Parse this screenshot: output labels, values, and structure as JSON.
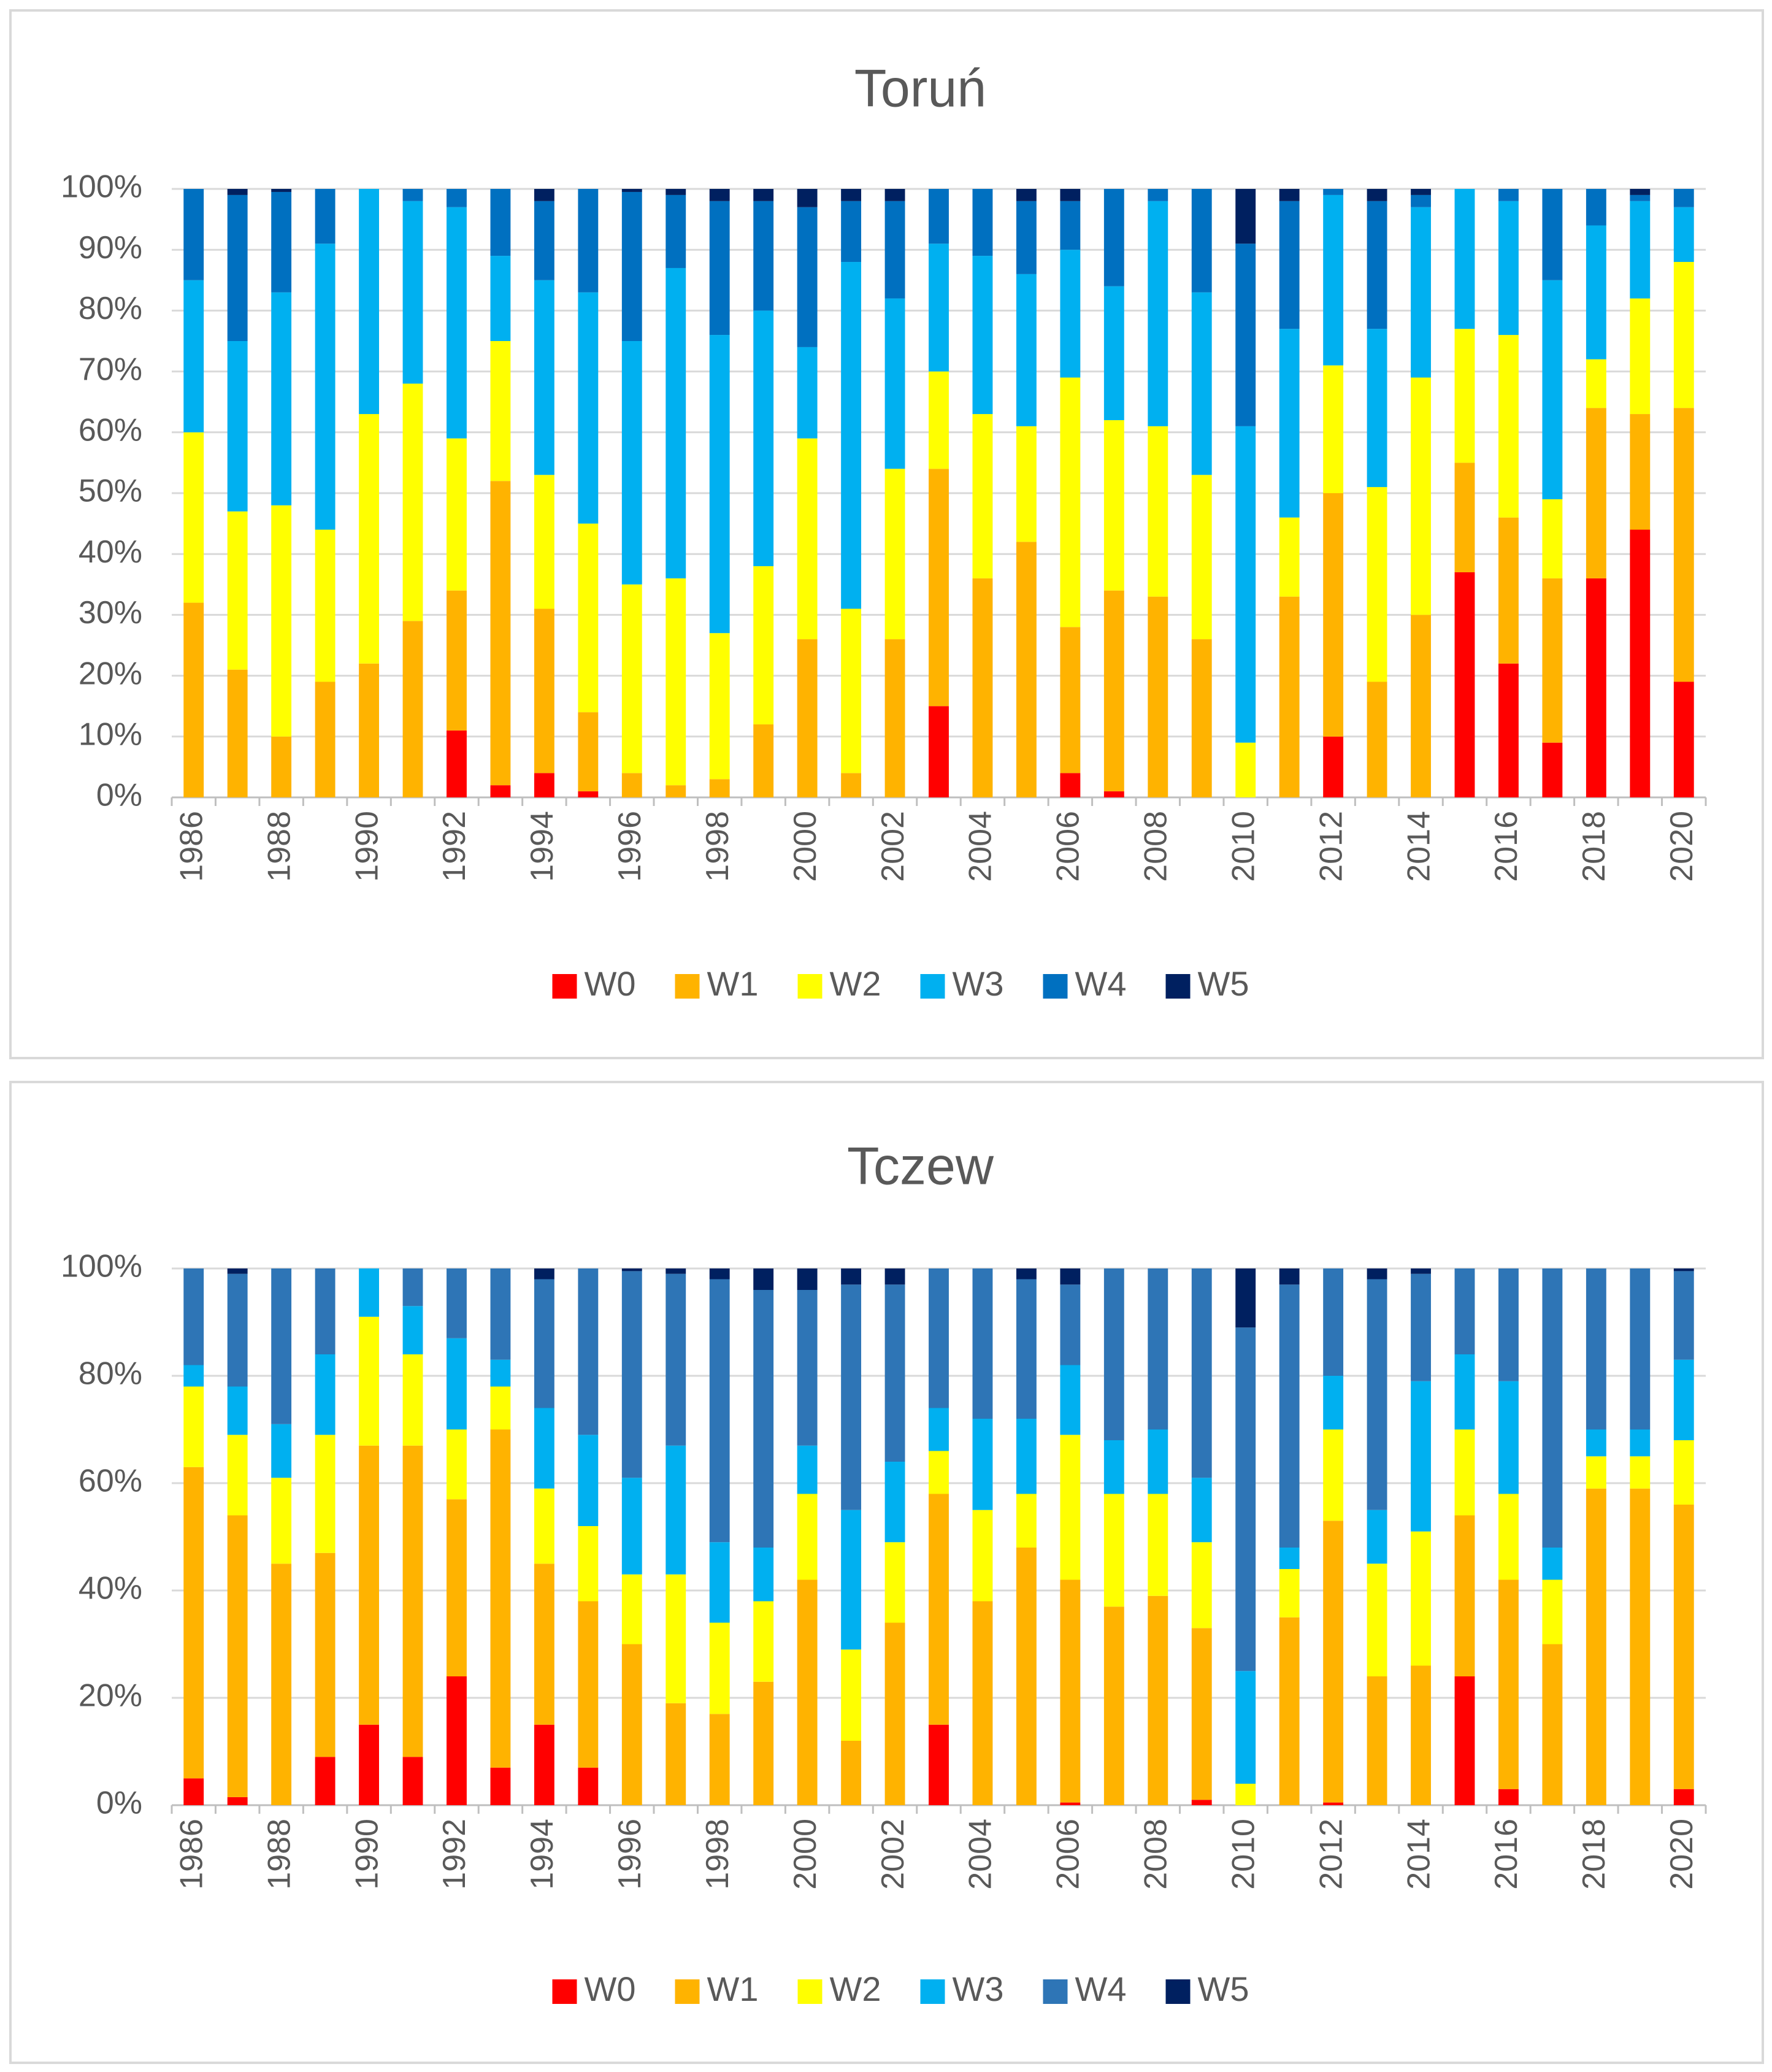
{
  "chart_data": [
    {
      "type": "bar",
      "stacked": true,
      "title": "Toruń",
      "categories": [
        "1986",
        null,
        "1988",
        null,
        "1990",
        null,
        "1992",
        null,
        "1994",
        null,
        "1996",
        null,
        "1998",
        null,
        "2000",
        null,
        "2002",
        null,
        "2004",
        null,
        "2006",
        null,
        "2008",
        null,
        "2010",
        null,
        "2012",
        null,
        "2014",
        null,
        "2016",
        null,
        "2018",
        null,
        "2020"
      ],
      "ylim": [
        0,
        100
      ],
      "yticks": [
        {
          "value": 0,
          "label": "0%"
        },
        {
          "value": 10,
          "label": "10%"
        },
        {
          "value": 20,
          "label": "20%"
        },
        {
          "value": 30,
          "label": "30%"
        },
        {
          "value": 40,
          "label": "40%"
        },
        {
          "value": 50,
          "label": "50%"
        },
        {
          "value": 60,
          "label": "60%"
        },
        {
          "value": 70,
          "label": "70%"
        },
        {
          "value": 80,
          "label": "80%"
        },
        {
          "value": 90,
          "label": "90%"
        },
        {
          "value": 100,
          "label": "100%"
        }
      ],
      "grid": true,
      "legend": "bottom",
      "series": [
        {
          "name": "W0",
          "color": "#ff0000",
          "values": [
            0,
            0,
            0,
            0,
            0,
            0,
            11,
            2,
            4,
            1,
            0,
            0,
            0,
            0,
            0,
            0,
            0,
            15,
            0,
            0,
            4,
            1,
            0,
            0,
            0,
            0,
            10,
            0,
            0,
            37,
            22,
            9,
            36,
            44,
            19
          ]
        },
        {
          "name": "W1",
          "color": "#ffb300",
          "values": [
            32,
            21,
            10,
            19,
            22,
            29,
            23,
            50,
            27,
            13,
            4,
            2,
            3,
            12,
            26,
            4,
            26,
            39,
            36,
            42,
            24,
            33,
            33,
            26,
            0,
            33,
            40,
            19,
            30,
            18,
            24,
            27,
            28,
            19,
            45
          ]
        },
        {
          "name": "W2",
          "color": "#ffff00",
          "values": [
            28,
            26,
            38,
            25,
            41,
            39,
            25,
            23,
            22,
            31,
            31,
            34,
            24,
            26,
            33,
            27,
            28,
            16,
            27,
            19,
            41,
            28,
            28,
            27,
            9,
            13,
            21,
            32,
            39,
            22,
            30,
            13,
            8,
            19,
            24
          ]
        },
        {
          "name": "W3",
          "color": "#00b0f0",
          "values": [
            25,
            28,
            35,
            47,
            37,
            30,
            38,
            14,
            32,
            38,
            40,
            51,
            49,
            42,
            15,
            57,
            28,
            21,
            26,
            25,
            21,
            22,
            37,
            30,
            52,
            31,
            28,
            26,
            28,
            23,
            22,
            36,
            22,
            16,
            9
          ]
        },
        {
          "name": "W4",
          "color": "#0070c0",
          "values": [
            15,
            24,
            16.5,
            9,
            0,
            2,
            3,
            11,
            13,
            17,
            24.5,
            12,
            22,
            18,
            23,
            10,
            16,
            9,
            11,
            12,
            8,
            16,
            2,
            17,
            30,
            21,
            1,
            21,
            2,
            0,
            2,
            15,
            6,
            1,
            3
          ]
        },
        {
          "name": "W5",
          "color": "#002060",
          "values": [
            0,
            1,
            0.5,
            0,
            0,
            0,
            0,
            0,
            2,
            0,
            0.5,
            1,
            2,
            2,
            3,
            2,
            2,
            0,
            0,
            2,
            2,
            0,
            0,
            0,
            9,
            2,
            0,
            2,
            1,
            0,
            0,
            0,
            0,
            1,
            0
          ]
        }
      ]
    },
    {
      "type": "bar",
      "stacked": true,
      "title": "Tczew",
      "categories": [
        "1986",
        null,
        "1988",
        null,
        "1990",
        null,
        "1992",
        null,
        "1994",
        null,
        "1996",
        null,
        "1998",
        null,
        "2000",
        null,
        "2002",
        null,
        "2004",
        null,
        "2006",
        null,
        "2008",
        null,
        "2010",
        null,
        "2012",
        null,
        "2014",
        null,
        "2016",
        null,
        "2018",
        null,
        "2020"
      ],
      "ylim": [
        0,
        100
      ],
      "yticks": [
        {
          "value": 0,
          "label": "0%"
        },
        {
          "value": 20,
          "label": "20%"
        },
        {
          "value": 40,
          "label": "40%"
        },
        {
          "value": 60,
          "label": "60%"
        },
        {
          "value": 80,
          "label": "80%"
        },
        {
          "value": 100,
          "label": "100%"
        }
      ],
      "grid": true,
      "legend": "bottom",
      "series": [
        {
          "name": "W0",
          "color": "#ff0000",
          "values": [
            5,
            1.5,
            0,
            9,
            15,
            9,
            24,
            7,
            15,
            7,
            0,
            0,
            0,
            0,
            0,
            0,
            0,
            15,
            0,
            0,
            0.5,
            0,
            0,
            1,
            0,
            0,
            0.5,
            0,
            0,
            24,
            3,
            0,
            0,
            0,
            3
          ]
        },
        {
          "name": "W1",
          "color": "#ffb300",
          "values": [
            58,
            52.5,
            45,
            38,
            52,
            58,
            33,
            63,
            30,
            31,
            30,
            19,
            17,
            23,
            42,
            12,
            34,
            43,
            38,
            48,
            41.5,
            37,
            39,
            32,
            0,
            35,
            52.5,
            24,
            26,
            30,
            39,
            30,
            59,
            59,
            53
          ]
        },
        {
          "name": "W2",
          "color": "#ffff00",
          "values": [
            15,
            15,
            16,
            22,
            24,
            17,
            13,
            8,
            14,
            14,
            13,
            24,
            17,
            15,
            16,
            17,
            15,
            8,
            17,
            10,
            27,
            21,
            19,
            16,
            4,
            9,
            17,
            21,
            25,
            16,
            16,
            12,
            6,
            6,
            12
          ]
        },
        {
          "name": "W3",
          "color": "#00b0f0",
          "values": [
            4,
            9,
            10,
            15,
            9,
            9,
            17,
            5,
            15,
            17,
            18,
            24,
            15,
            10,
            9,
            26,
            15,
            8,
            17,
            14,
            13,
            10,
            12,
            12,
            21,
            4,
            10,
            10,
            28,
            14,
            21,
            6,
            5,
            5,
            15
          ]
        },
        {
          "name": "W4",
          "color": "#2e75b6",
          "values": [
            18,
            21,
            29,
            16,
            0,
            7,
            13,
            17,
            24,
            31,
            38.5,
            32,
            49,
            48,
            29,
            42,
            33,
            26,
            28,
            26,
            15,
            32,
            30,
            39,
            64,
            49,
            20,
            43,
            20,
            16,
            21,
            52,
            30,
            30,
            16.5
          ]
        },
        {
          "name": "W5",
          "color": "#002060",
          "values": [
            0,
            1,
            0,
            0,
            0,
            0,
            0,
            0,
            2,
            0,
            0.5,
            1,
            2,
            4,
            4,
            3,
            3,
            0,
            0,
            2,
            3,
            0,
            0,
            0,
            11,
            3,
            0,
            2,
            1,
            0,
            0,
            0,
            0,
            0,
            0.5
          ]
        }
      ]
    }
  ]
}
